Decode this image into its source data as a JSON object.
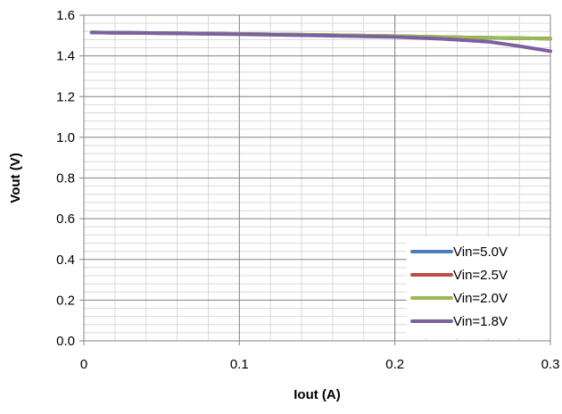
{
  "chart_data": {
    "type": "line",
    "title": "",
    "xlabel": "Iout (A)",
    "ylabel": "Vout (V)",
    "xlim": [
      0,
      0.3
    ],
    "ylim": [
      0,
      1.6
    ],
    "x_ticks": [
      0,
      0.1,
      0.2,
      0.3
    ],
    "x_tick_labels": [
      "0",
      "0.1",
      "0.2",
      "0.3"
    ],
    "y_ticks": [
      0,
      0.2,
      0.4,
      0.6,
      0.8,
      1.0,
      1.2,
      1.4,
      1.6
    ],
    "y_tick_labels": [
      "0.0",
      "0.2",
      "0.4",
      "0.6",
      "0.8",
      "1.0",
      "1.2",
      "1.4",
      "1.6"
    ],
    "x_minor_step": 0.02,
    "y_minor_step": 0.04,
    "grid": true,
    "legend_position": "bottom-right",
    "series": [
      {
        "name": "Vin=5.0V",
        "color": "#4a7ebb",
        "x": [
          0.005,
          0.05,
          0.1,
          0.15,
          0.2,
          0.25,
          0.3
        ],
        "y": [
          1.515,
          1.512,
          1.508,
          1.503,
          1.497,
          1.49,
          1.485
        ]
      },
      {
        "name": "Vin=2.5V",
        "color": "#be4b48",
        "x": [
          0.005,
          0.05,
          0.1,
          0.15,
          0.2,
          0.25,
          0.3
        ],
        "y": [
          1.515,
          1.512,
          1.508,
          1.503,
          1.497,
          1.49,
          1.485
        ]
      },
      {
        "name": "Vin=2.0V",
        "color": "#98b954",
        "x": [
          0.005,
          0.05,
          0.1,
          0.15,
          0.2,
          0.25,
          0.3
        ],
        "y": [
          1.515,
          1.512,
          1.508,
          1.503,
          1.497,
          1.49,
          1.485
        ]
      },
      {
        "name": "Vin=1.8V",
        "color": "#7d60a0",
        "x": [
          0.005,
          0.05,
          0.1,
          0.15,
          0.2,
          0.23,
          0.26,
          0.28,
          0.3
        ],
        "y": [
          1.515,
          1.511,
          1.506,
          1.5,
          1.493,
          1.484,
          1.47,
          1.448,
          1.423
        ]
      }
    ]
  }
}
